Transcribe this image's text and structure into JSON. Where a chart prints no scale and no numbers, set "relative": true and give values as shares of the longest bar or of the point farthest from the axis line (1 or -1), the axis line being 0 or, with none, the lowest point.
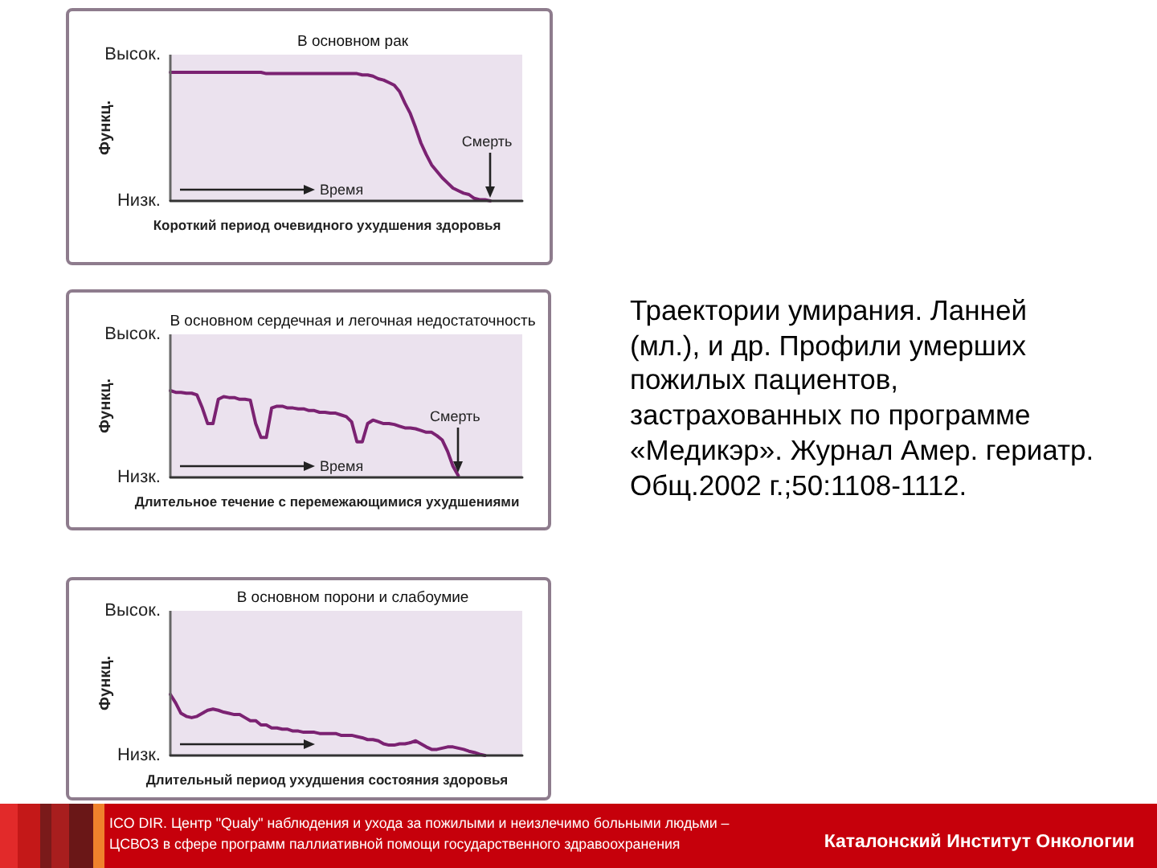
{
  "chart_data": [
    {
      "type": "line",
      "relative": true,
      "title": "В основном рак",
      "xlabel": "Время",
      "ylabel": "Функц.",
      "categories": [
        null,
        null,
        null,
        null,
        null,
        null,
        null,
        null,
        null,
        null,
        null,
        null,
        null,
        null,
        null,
        null,
        null,
        null,
        null,
        null,
        null,
        null,
        null,
        null,
        null,
        null,
        null,
        null,
        null,
        null,
        null,
        null,
        null,
        null,
        null,
        null,
        null,
        null,
        null,
        null,
        null,
        null,
        null,
        null,
        null,
        null,
        null,
        null,
        null,
        null,
        null,
        null,
        null,
        null,
        null,
        null,
        null,
        null,
        null,
        null,
        null,
        null,
        null,
        null,
        null,
        null,
        null
      ],
      "values": [
        1,
        1,
        1,
        1,
        1,
        1,
        1,
        1,
        1,
        1,
        1,
        1,
        1,
        1,
        1,
        1,
        1,
        1,
        0.99,
        0.99,
        0.99,
        0.99,
        0.99,
        0.99,
        0.99,
        0.99,
        0.99,
        0.99,
        0.99,
        0.99,
        0.99,
        0.99,
        0.99,
        0.99,
        0.99,
        0.99,
        0.98,
        0.98,
        0.97,
        0.95,
        0.94,
        0.92,
        0.9,
        0.85,
        0.76,
        0.68,
        0.57,
        0.45,
        0.36,
        0.28,
        0.23,
        0.18,
        0.14,
        0.1,
        0.08,
        0.06,
        0.05,
        0.02,
        0.01,
        0.01,
        0,
        null,
        null,
        null,
        null,
        null,
        null
      ],
      "color": "#7b2272",
      "annotations": [
        "Высок.",
        "Низк.",
        "Короткий период очевидного ухудшения здоровья",
        "Смерть"
      ]
    },
    {
      "type": "line",
      "relative": true,
      "title": "В основном сердечная и легочная недостаточность",
      "xlabel": "Время",
      "ylabel": "Функц.",
      "categories": [
        null,
        null,
        null,
        null,
        null,
        null,
        null,
        null,
        null,
        null,
        null,
        null,
        null,
        null,
        null,
        null,
        null,
        null,
        null,
        null,
        null,
        null,
        null,
        null,
        null,
        null,
        null,
        null,
        null,
        null,
        null,
        null,
        null,
        null,
        null,
        null,
        null,
        null,
        null,
        null,
        null,
        null,
        null,
        null,
        null,
        null,
        null,
        null,
        null,
        null,
        null,
        null,
        null,
        null,
        null,
        null,
        null,
        null,
        null,
        null,
        null,
        null,
        null,
        null,
        null,
        null,
        null
      ],
      "values": [
        1,
        0.98,
        0.98,
        0.97,
        0.97,
        0.95,
        0.8,
        0.62,
        0.62,
        0.9,
        0.93,
        0.92,
        0.92,
        0.9,
        0.9,
        0.89,
        0.62,
        0.46,
        0.46,
        0.8,
        0.82,
        0.82,
        0.8,
        0.8,
        0.79,
        0.79,
        0.77,
        0.77,
        0.75,
        0.75,
        0.74,
        0.74,
        0.72,
        0.7,
        0.64,
        0.41,
        0.41,
        0.62,
        0.66,
        0.64,
        0.62,
        0.62,
        0.61,
        0.59,
        0.57,
        0.57,
        0.56,
        0.54,
        0.52,
        0.52,
        0.48,
        0.43,
        0.3,
        0.13,
        0.02,
        null,
        null,
        null,
        null,
        null,
        null,
        null,
        null,
        null,
        null,
        null,
        null
      ],
      "color": "#7b2272",
      "annotations": [
        "Высок.",
        "Низк.",
        "Длительное течение с перемежающимися ухудшениями",
        "Смерть"
      ]
    },
    {
      "type": "line",
      "relative": true,
      "title": "В основном порони и слабоумие",
      "ylabel": "Функц.",
      "categories": [
        null,
        null,
        null,
        null,
        null,
        null,
        null,
        null,
        null,
        null,
        null,
        null,
        null,
        null,
        null,
        null,
        null,
        null,
        null,
        null,
        null,
        null,
        null,
        null,
        null,
        null,
        null,
        null,
        null,
        null,
        null,
        null,
        null,
        null,
        null,
        null,
        null,
        null,
        null,
        null,
        null,
        null,
        null,
        null,
        null,
        null,
        null,
        null,
        null,
        null,
        null,
        null,
        null,
        null,
        null,
        null,
        null,
        null,
        null,
        null,
        null,
        null,
        null,
        null,
        null,
        null,
        null
      ],
      "values": [
        1,
        0.86,
        0.69,
        0.64,
        0.62,
        0.64,
        0.69,
        0.74,
        0.76,
        0.74,
        0.71,
        0.69,
        0.67,
        0.67,
        0.62,
        0.57,
        0.57,
        0.5,
        0.5,
        0.45,
        0.45,
        0.43,
        0.43,
        0.4,
        0.4,
        0.38,
        0.38,
        0.38,
        0.36,
        0.36,
        0.36,
        0.36,
        0.33,
        0.33,
        0.33,
        0.31,
        0.29,
        0.26,
        0.26,
        0.24,
        0.19,
        0.17,
        0.17,
        0.19,
        0.19,
        0.21,
        0.24,
        0.19,
        0.14,
        0.1,
        0.1,
        0.12,
        0.14,
        0.14,
        0.12,
        0.1,
        0.07,
        0.05,
        0.02,
        0,
        null,
        null,
        null,
        null,
        null,
        null,
        null
      ],
      "color": "#7b2272",
      "annotations": [
        "Высок.",
        "Низк.",
        "Длительный период ухудшения состояния здоровья"
      ]
    },
    {
      "type": "other",
      "annotations": [
        "Траектории умирания. Ланней (мл.), и др. Профили умерших пожилых пациентов, застрахованных по программе «Медикэр». Журнал Амер. гериатр. Общ.2002 г.;50:1108-1112."
      ]
    },
    {
      "type": "other",
      "annotations": [
        "ICO DIR. Центр \"Qualy\" наблюдения и ухода за пожилыми и неизлечимо больными людьми – ЦСВОЗ в сфере программ паллиативной помощи государственного здравоохранения",
        "Каталонский Институт Онкологии"
      ]
    }
  ]
}
